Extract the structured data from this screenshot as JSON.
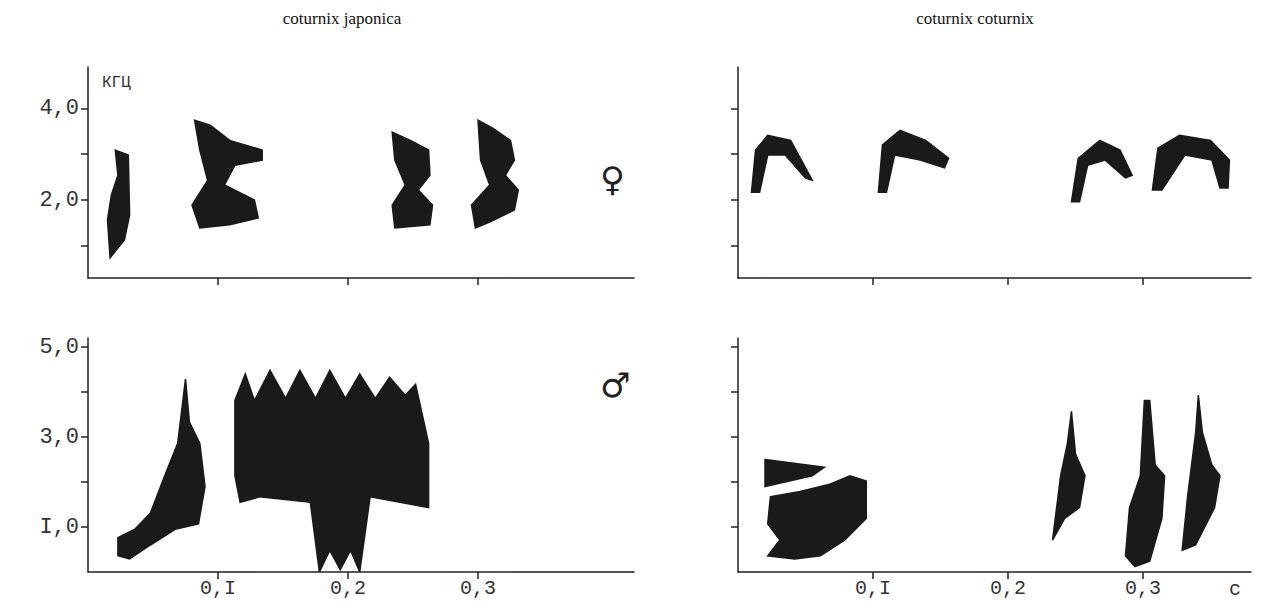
{
  "chart_data": [
    {
      "type": "spectrogram",
      "title": "coturnix japonica",
      "annotation": "♀",
      "ylabel": "КГЦ",
      "color": "#1a1a1a",
      "xlim": [
        0,
        0.42
      ],
      "xticks": [
        {
          "value": 0.1,
          "label": null
        },
        {
          "value": 0.2,
          "label": null
        },
        {
          "value": 0.3,
          "label": null
        }
      ],
      "ylim": [
        0.3,
        4.9
      ],
      "yticks": [
        {
          "value": 1,
          "label": null
        },
        {
          "value": 2,
          "label": "2,0"
        },
        {
          "value": 3,
          "label": null
        },
        {
          "value": 4,
          "label": "4,0"
        }
      ],
      "syllables": [
        [
          [
            0.017,
            0.74
          ],
          [
            0.028,
            1.13
          ],
          [
            0.032,
            1.67
          ],
          [
            0.031,
            2.98
          ],
          [
            0.021,
            3.09
          ],
          [
            0.023,
            2.54
          ],
          [
            0.018,
            2.11
          ],
          [
            0.015,
            1.57
          ]
        ],
        [
          [
            0.082,
            3.74
          ],
          [
            0.094,
            3.63
          ],
          [
            0.109,
            3.3
          ],
          [
            0.134,
            3.09
          ],
          [
            0.134,
            2.87
          ],
          [
            0.113,
            2.76
          ],
          [
            0.105,
            2.33
          ],
          [
            0.128,
            2.0
          ],
          [
            0.131,
            1.61
          ],
          [
            0.109,
            1.46
          ],
          [
            0.086,
            1.39
          ],
          [
            0.08,
            1.89
          ],
          [
            0.092,
            2.43
          ],
          [
            0.086,
            3.09
          ]
        ],
        [
          [
            0.234,
            3.48
          ],
          [
            0.248,
            3.3
          ],
          [
            0.262,
            3.09
          ],
          [
            0.263,
            2.54
          ],
          [
            0.254,
            2.22
          ],
          [
            0.265,
            1.89
          ],
          [
            0.263,
            1.46
          ],
          [
            0.236,
            1.39
          ],
          [
            0.234,
            1.89
          ],
          [
            0.244,
            2.33
          ],
          [
            0.236,
            2.87
          ]
        ],
        [
          [
            0.3,
            3.74
          ],
          [
            0.311,
            3.57
          ],
          [
            0.325,
            3.3
          ],
          [
            0.328,
            2.87
          ],
          [
            0.321,
            2.54
          ],
          [
            0.331,
            2.22
          ],
          [
            0.328,
            1.78
          ],
          [
            0.309,
            1.52
          ],
          [
            0.298,
            1.39
          ],
          [
            0.295,
            1.89
          ],
          [
            0.309,
            2.33
          ],
          [
            0.302,
            2.87
          ]
        ]
      ]
    },
    {
      "type": "spectrogram",
      "title": "coturnix coturnix",
      "color": "#1a1a1a",
      "xlim": [
        0,
        0.38
      ],
      "xticks": [
        {
          "value": 0.1,
          "label": null
        },
        {
          "value": 0.2,
          "label": null
        },
        {
          "value": 0.3,
          "label": null
        }
      ],
      "ylim": [
        0.3,
        4.9
      ],
      "yticks": [
        {
          "value": 1,
          "label": null
        },
        {
          "value": 2,
          "label": null
        },
        {
          "value": 3,
          "label": null
        },
        {
          "value": 4,
          "label": null
        }
      ],
      "syllables": [
        [
          [
            0.01,
            2.17
          ],
          [
            0.013,
            3.09
          ],
          [
            0.022,
            3.41
          ],
          [
            0.039,
            3.3
          ],
          [
            0.055,
            2.43
          ],
          [
            0.05,
            2.48
          ],
          [
            0.035,
            2.98
          ],
          [
            0.022,
            2.98
          ],
          [
            0.016,
            2.17
          ]
        ],
        [
          [
            0.104,
            2.17
          ],
          [
            0.107,
            3.2
          ],
          [
            0.12,
            3.52
          ],
          [
            0.139,
            3.3
          ],
          [
            0.156,
            2.91
          ],
          [
            0.153,
            2.7
          ],
          [
            0.135,
            2.87
          ],
          [
            0.116,
            2.98
          ],
          [
            0.11,
            2.17
          ]
        ],
        [
          [
            0.247,
            1.96
          ],
          [
            0.252,
            2.91
          ],
          [
            0.268,
            3.3
          ],
          [
            0.283,
            3.09
          ],
          [
            0.292,
            2.54
          ],
          [
            0.287,
            2.48
          ],
          [
            0.272,
            2.87
          ],
          [
            0.259,
            2.76
          ],
          [
            0.253,
            1.96
          ]
        ],
        [
          [
            0.307,
            2.22
          ],
          [
            0.311,
            3.13
          ],
          [
            0.327,
            3.41
          ],
          [
            0.35,
            3.3
          ],
          [
            0.364,
            2.87
          ],
          [
            0.363,
            2.26
          ],
          [
            0.357,
            2.26
          ],
          [
            0.351,
            2.87
          ],
          [
            0.331,
            2.98
          ],
          [
            0.314,
            2.22
          ]
        ]
      ]
    },
    {
      "type": "spectrogram",
      "annotation": "♂",
      "color": "#1a1a1a",
      "xlim": [
        0,
        0.42
      ],
      "xticks": [
        {
          "value": 0.1,
          "label": "0,I"
        },
        {
          "value": 0.2,
          "label": "0,2"
        },
        {
          "value": 0.3,
          "label": "0,3"
        }
      ],
      "ylim": [
        0,
        5.2
      ],
      "yticks": [
        {
          "value": 1,
          "label": "I,0"
        },
        {
          "value": 2,
          "label": null
        },
        {
          "value": 3,
          "label": "3,0"
        },
        {
          "value": 4,
          "label": null
        },
        {
          "value": 5,
          "label": "5,0"
        }
      ],
      "syllables": [
        [
          [
            0.023,
            0.36
          ],
          [
            0.023,
            0.76
          ],
          [
            0.036,
            0.95
          ],
          [
            0.048,
            1.31
          ],
          [
            0.059,
            2.14
          ],
          [
            0.069,
            2.86
          ],
          [
            0.075,
            4.29
          ],
          [
            0.078,
            3.33
          ],
          [
            0.086,
            2.86
          ],
          [
            0.09,
            1.9
          ],
          [
            0.085,
            1.07
          ],
          [
            0.067,
            0.95
          ],
          [
            0.048,
            0.6
          ],
          [
            0.032,
            0.29
          ]
        ],
        [
          [
            0.113,
            3.81
          ],
          [
            0.121,
            4.4
          ],
          [
            0.128,
            3.81
          ],
          [
            0.14,
            4.48
          ],
          [
            0.152,
            3.86
          ],
          [
            0.163,
            4.48
          ],
          [
            0.175,
            3.86
          ],
          [
            0.186,
            4.48
          ],
          [
            0.198,
            3.86
          ],
          [
            0.209,
            4.4
          ],
          [
            0.221,
            3.86
          ],
          [
            0.232,
            4.33
          ],
          [
            0.244,
            3.93
          ],
          [
            0.252,
            4.17
          ],
          [
            0.262,
            2.86
          ],
          [
            0.262,
            1.43
          ],
          [
            0.24,
            1.55
          ],
          [
            0.217,
            1.67
          ],
          [
            0.209,
            0.0
          ],
          [
            0.202,
            0.48
          ],
          [
            0.194,
            0.05
          ],
          [
            0.186,
            0.48
          ],
          [
            0.178,
            0.0
          ],
          [
            0.171,
            1.55
          ],
          [
            0.132,
            1.67
          ],
          [
            0.117,
            1.55
          ],
          [
            0.113,
            2.14
          ]
        ]
      ]
    },
    {
      "type": "spectrogram",
      "xlabel": "с",
      "color": "#1a1a1a",
      "xlim": [
        0,
        0.38
      ],
      "xticks": [
        {
          "value": 0.1,
          "label": "0,I"
        },
        {
          "value": 0.2,
          "label": "0,2"
        },
        {
          "value": 0.3,
          "label": "0,3"
        }
      ],
      "ylim": [
        0,
        5.2
      ],
      "yticks": [
        {
          "value": 1,
          "label": null
        },
        {
          "value": 2,
          "label": null
        },
        {
          "value": 3,
          "label": null
        },
        {
          "value": 4,
          "label": null
        },
        {
          "value": 5,
          "label": null
        }
      ],
      "syllables": [
        [
          [
            0.02,
            2.5
          ],
          [
            0.064,
            2.33
          ],
          [
            0.055,
            2.14
          ],
          [
            0.02,
            1.9
          ]
        ],
        [
          [
            0.024,
            1.67
          ],
          [
            0.046,
            1.79
          ],
          [
            0.068,
            1.95
          ],
          [
            0.083,
            2.14
          ],
          [
            0.095,
            2.02
          ],
          [
            0.095,
            1.19
          ],
          [
            0.079,
            0.71
          ],
          [
            0.061,
            0.36
          ],
          [
            0.042,
            0.29
          ],
          [
            0.022,
            0.36
          ],
          [
            0.031,
            0.71
          ],
          [
            0.022,
            1.07
          ]
        ],
        [
          [
            0.233,
            0.71
          ],
          [
            0.239,
            2.14
          ],
          [
            0.244,
            2.86
          ],
          [
            0.247,
            3.57
          ],
          [
            0.25,
            2.62
          ],
          [
            0.257,
            2.14
          ],
          [
            0.253,
            1.43
          ],
          [
            0.242,
            1.19
          ]
        ],
        [
          [
            0.287,
            0.36
          ],
          [
            0.29,
            1.43
          ],
          [
            0.298,
            2.14
          ],
          [
            0.301,
            3.81
          ],
          [
            0.305,
            3.81
          ],
          [
            0.309,
            2.38
          ],
          [
            0.316,
            2.14
          ],
          [
            0.314,
            1.19
          ],
          [
            0.305,
            0.24
          ],
          [
            0.294,
            0.12
          ]
        ],
        [
          [
            0.329,
            0.48
          ],
          [
            0.333,
            1.67
          ],
          [
            0.339,
            3.1
          ],
          [
            0.341,
            3.93
          ],
          [
            0.344,
            3.1
          ],
          [
            0.351,
            2.38
          ],
          [
            0.357,
            2.14
          ],
          [
            0.353,
            1.43
          ],
          [
            0.339,
            0.6
          ]
        ]
      ]
    }
  ]
}
